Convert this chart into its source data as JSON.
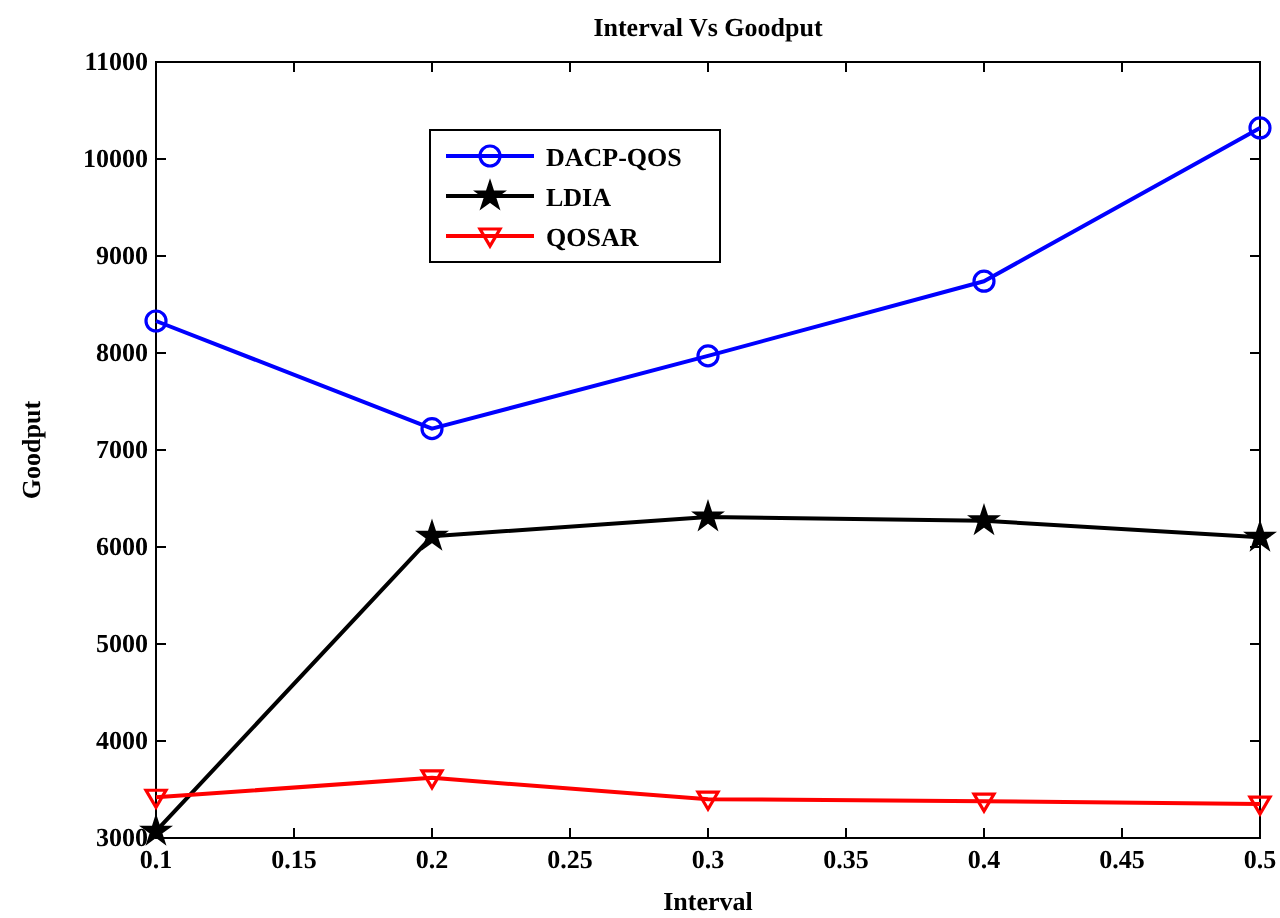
{
  "chart_data": {
    "type": "line",
    "title": "Interval Vs Goodput",
    "xlabel": "Interval",
    "ylabel": "Goodput",
    "x": [
      0.1,
      0.2,
      0.3,
      0.4,
      0.5
    ],
    "series": [
      {
        "name": "DACP-QOS",
        "color": "#0000ff",
        "marker": "circle",
        "values": [
          8330,
          7220,
          7970,
          8740,
          10320
        ]
      },
      {
        "name": "LDIA",
        "color": "#000000",
        "marker": "star",
        "values": [
          3070,
          6110,
          6310,
          6270,
          6100
        ]
      },
      {
        "name": "QOSAR",
        "color": "#ff0000",
        "marker": "triangle",
        "values": [
          3420,
          3620,
          3400,
          3380,
          3350
        ]
      }
    ],
    "xlim": [
      0.1,
      0.5
    ],
    "xticks": [
      0.1,
      0.15,
      0.2,
      0.25,
      0.3,
      0.35,
      0.4,
      0.45,
      0.5
    ],
    "ylim": [
      3000,
      11000
    ],
    "yticks": [
      3000,
      4000,
      5000,
      6000,
      7000,
      8000,
      9000,
      10000,
      11000
    ],
    "grid": false,
    "legend": "top left",
    "line_style": "solid"
  }
}
